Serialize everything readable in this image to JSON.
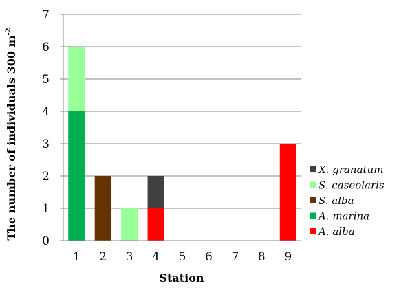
{
  "chart_data": {
    "type": "bar",
    "stacked": true,
    "title": "",
    "xlabel": "Station",
    "ylabel_main": "The number of individuals 300 m",
    "ylabel_sup": "-2",
    "categories": [
      "1",
      "2",
      "3",
      "4",
      "5",
      "6",
      "7",
      "8",
      "9"
    ],
    "ylim": [
      0,
      7
    ],
    "yticks": [
      0,
      1,
      2,
      3,
      4,
      5,
      6,
      7
    ],
    "grid": true,
    "legend_position": "right",
    "series": [
      {
        "name": "A. alba",
        "color": "#ff0000",
        "values": [
          0,
          0,
          0,
          1,
          0,
          0,
          0,
          0,
          3
        ]
      },
      {
        "name": "A. marina",
        "color": "#00b050",
        "values": [
          4,
          0,
          0,
          0,
          0,
          0,
          0,
          0,
          0
        ]
      },
      {
        "name": "S. alba",
        "color": "#663300",
        "values": [
          0,
          2,
          0,
          0,
          0,
          0,
          0,
          0,
          0
        ]
      },
      {
        "name": "S. caseolaris",
        "color": "#99ff99",
        "values": [
          2,
          0,
          1,
          0,
          0,
          0,
          0,
          0,
          0
        ]
      },
      {
        "name": "X. granatum",
        "color": "#404040",
        "values": [
          0,
          0,
          0,
          1,
          0,
          0,
          0,
          0,
          0
        ]
      }
    ],
    "legend_order": [
      "X. granatum",
      "S. caseolaris",
      "S. alba",
      "A. marina",
      "A. alba"
    ]
  }
}
